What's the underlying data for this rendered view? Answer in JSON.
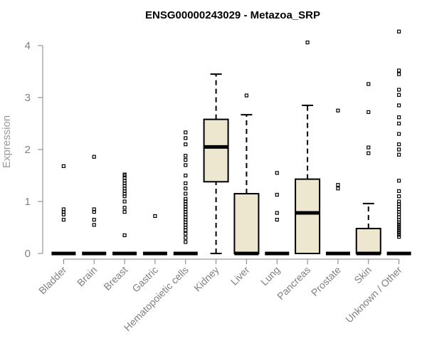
{
  "chart_data": {
    "type": "boxplot",
    "title": "ENSG00000243029 - Metazoa_SRP",
    "xlabel": "",
    "ylabel": "Expression",
    "ylim": [
      0,
      4.3
    ],
    "yticks": [
      0,
      1,
      2,
      3,
      4
    ],
    "box_color": "#ede7cf",
    "categories": [
      "Bladder",
      "Brain",
      "Breast",
      "Gastric",
      "Hematopoietic cells",
      "Kidney",
      "Liver",
      "Lung",
      "Pancreas",
      "Prostate",
      "Skin",
      "Unknown / Other"
    ],
    "boxes": [
      {
        "min": 0,
        "q1": 0,
        "median": 0,
        "q3": 0,
        "max": 0,
        "outliers": [
          0.65,
          0.75,
          0.8,
          0.85,
          1.68
        ]
      },
      {
        "min": 0,
        "q1": 0,
        "median": 0,
        "q3": 0,
        "max": 0,
        "outliers": [
          0.55,
          0.65,
          0.8,
          0.85,
          1.86
        ]
      },
      {
        "min": 0,
        "q1": 0,
        "median": 0,
        "q3": 0,
        "max": 0,
        "outliers": [
          0.35,
          0.8,
          0.88,
          1.0,
          1.1,
          1.15,
          1.2,
          1.25,
          1.3,
          1.35,
          1.4,
          1.45,
          1.5,
          1.52
        ]
      },
      {
        "min": 0,
        "q1": 0,
        "median": 0,
        "q3": 0,
        "max": 0,
        "outliers": [
          0.72
        ]
      },
      {
        "min": 0,
        "q1": 0,
        "median": 0,
        "q3": 0,
        "max": 0,
        "outliers": [
          0.22,
          0.3,
          0.38,
          0.45,
          0.5,
          0.55,
          0.6,
          0.65,
          0.7,
          0.75,
          0.8,
          0.85,
          0.9,
          0.95,
          1.0,
          1.05,
          1.15,
          1.25,
          1.35,
          1.5,
          1.7,
          1.8,
          1.88,
          2.1,
          2.22,
          2.33
        ]
      },
      {
        "min": 0,
        "q1": 1.38,
        "median": 2.05,
        "q3": 2.58,
        "max": 3.45,
        "outliers": []
      },
      {
        "min": 0,
        "q1": 0,
        "median": 0,
        "q3": 1.15,
        "max": 2.67,
        "outliers": [
          3.04
        ]
      },
      {
        "min": 0,
        "q1": 0,
        "median": 0,
        "q3": 0,
        "max": 0,
        "outliers": [
          0.65,
          0.78,
          1.13,
          1.55
        ]
      },
      {
        "min": 0,
        "q1": 0,
        "median": 0.78,
        "q3": 1.43,
        "max": 2.85,
        "outliers": [
          4.06
        ]
      },
      {
        "min": 0,
        "q1": 0,
        "median": 0,
        "q3": 0,
        "max": 0,
        "outliers": [
          1.25,
          1.32,
          2.75
        ]
      },
      {
        "min": 0,
        "q1": 0,
        "median": 0,
        "q3": 0.48,
        "max": 0.96,
        "outliers": [
          1.93,
          2.04,
          2.72,
          3.26
        ]
      },
      {
        "min": 0,
        "q1": 0,
        "median": 0,
        "q3": 0,
        "max": 0,
        "outliers": [
          0.32,
          0.36,
          0.4,
          0.44,
          0.48,
          0.52,
          0.56,
          0.6,
          0.65,
          0.7,
          0.75,
          0.8,
          0.85,
          0.9,
          0.95,
          1.0,
          1.1,
          1.2,
          1.4,
          1.9,
          2.0,
          2.1,
          2.3,
          2.5,
          2.62,
          2.85,
          3.05,
          3.15,
          3.45,
          3.52,
          4.27
        ]
      }
    ]
  }
}
